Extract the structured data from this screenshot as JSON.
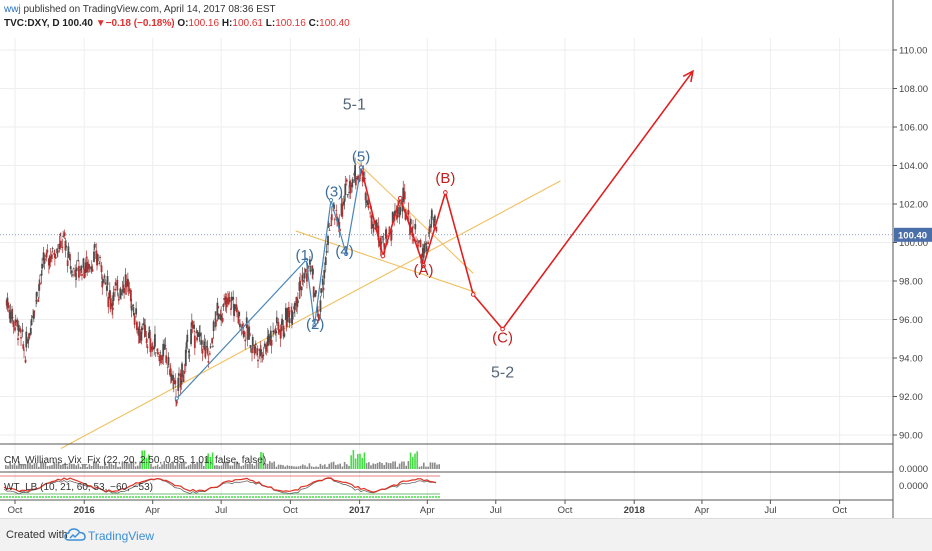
{
  "header": {
    "user": "wwj",
    "published": " published on TradingView.com, April 14, 2017 08:36 EST",
    "symbol": "TVC:DXY, D",
    "last": "100.40",
    "change": "−0.18 (−0.18%)",
    "o_label": "O:",
    "o_value": "100.16",
    "h_label": "H:",
    "h_value": "100.61",
    "l_label": "L:",
    "l_value": "100.16",
    "c_label": "C:",
    "c_value": "100.40"
  },
  "colors": {
    "up": "#4a4a4a",
    "down": "#b03030",
    "wave_blue": "#4a86b8",
    "wave_red": "#e02020",
    "trend_yellow": "#f0c060",
    "price_tag": "#4a6ea8",
    "green": "#44dd44"
  },
  "chart_data": {
    "type": "candlestick",
    "symbol": "TVC:DXY",
    "interval": "D",
    "y_ticks": [
      "110.00",
      "108.00",
      "106.00",
      "104.00",
      "102.00",
      "100.00",
      "98.00",
      "96.00",
      "94.00",
      "92.00",
      "90.00"
    ],
    "ylim": [
      89,
      111
    ],
    "last_price": "100.40",
    "x_ticks": [
      "Oct",
      "2016",
      "Apr",
      "Jul",
      "Oct",
      "2017",
      "Apr",
      "Jul",
      "Oct",
      "2018",
      "Apr",
      "Jul",
      "Oct"
    ],
    "price_path": [
      [
        "2015-09-20",
        97.0
      ],
      [
        "2015-10-05",
        95.5
      ],
      [
        "2015-10-15",
        94.2
      ],
      [
        "2015-10-25",
        96.5
      ],
      [
        "2015-11-10",
        99.0
      ],
      [
        "2015-11-25",
        99.8
      ],
      [
        "2015-12-05",
        100.2
      ],
      [
        "2015-12-15",
        98.5
      ],
      [
        "2016-01-01",
        98.8
      ],
      [
        "2016-01-20",
        99.2
      ],
      [
        "2016-02-05",
        97.0
      ],
      [
        "2016-02-25",
        98.0
      ],
      [
        "2016-03-15",
        95.5
      ],
      [
        "2016-04-05",
        94.5
      ],
      [
        "2016-04-20",
        94.0
      ],
      [
        "2016-05-03",
        92.0
      ],
      [
        "2016-05-25",
        95.5
      ],
      [
        "2016-06-15",
        94.0
      ],
      [
        "2016-06-25",
        96.2
      ],
      [
        "2016-07-15",
        97.0
      ],
      [
        "2016-08-01",
        95.5
      ],
      [
        "2016-08-20",
        94.2
      ],
      [
        "2016-09-10",
        95.5
      ],
      [
        "2016-09-25",
        95.8
      ],
      [
        "2016-10-15",
        97.8
      ],
      [
        "2016-10-28",
        98.8
      ],
      [
        "2016-11-08",
        96.0
      ],
      [
        "2016-11-25",
        101.5
      ],
      [
        "2016-12-05",
        101.0
      ],
      [
        "2016-12-20",
        103.3
      ],
      [
        "2017-01-03",
        103.7
      ],
      [
        "2017-01-20",
        101.0
      ],
      [
        "2017-02-05",
        100.0
      ],
      [
        "2017-02-20",
        101.5
      ],
      [
        "2017-03-01",
        102.0
      ],
      [
        "2017-03-15",
        100.5
      ],
      [
        "2017-03-27",
        99.2
      ],
      [
        "2017-04-07",
        101.0
      ],
      [
        "2017-04-14",
        100.4
      ]
    ],
    "waves": {
      "impulse_labels": [
        {
          "label": "(1)",
          "date": "2016-10-20",
          "price": 99.1
        },
        {
          "label": "(2)",
          "date": "2016-11-03",
          "price": 95.5
        },
        {
          "label": "(3)",
          "date": "2016-11-28",
          "price": 102.4
        },
        {
          "label": "(4)",
          "date": "2016-12-12",
          "price": 99.3
        },
        {
          "label": "(5)",
          "date": "2017-01-03",
          "price": 104.2
        }
      ],
      "corrective_labels": [
        {
          "label": "(A)",
          "date": "2017-03-27",
          "price": 98.3
        },
        {
          "label": "(B)",
          "date": "2017-04-25",
          "price": 103.1
        },
        {
          "label": "(C)",
          "date": "2017-07-10",
          "price": 94.8
        }
      ],
      "degree_labels": [
        {
          "label": "5-1",
          "date": "2016-12-25",
          "price": 106.9
        },
        {
          "label": "5-2",
          "date": "2017-07-10",
          "price": 93.0
        }
      ],
      "red_path": [
        [
          "2017-01-03",
          103.9
        ],
        [
          "2017-02-01",
          99.3
        ],
        [
          "2017-02-24",
          102.3
        ],
        [
          "2017-03-27",
          98.8
        ],
        [
          "2017-04-25",
          102.6
        ],
        [
          "2017-06-01",
          97.3
        ],
        [
          "2017-07-10",
          95.5
        ],
        [
          "2018-03-20",
          108.9
        ]
      ],
      "blue_path": [
        [
          "2016-05-03",
          91.9
        ],
        [
          "2016-10-22",
          99.1
        ],
        [
          "2016-11-02",
          95.7
        ],
        [
          "2016-11-24",
          102.2
        ],
        [
          "2016-12-14",
          99.4
        ],
        [
          "2017-01-03",
          103.9
        ]
      ]
    },
    "indicators": [
      {
        "name": "CM_Williams_Vix_Fix (22, 20, 2.50, 0.85, 1.01, false, false)",
        "value": "0.0000"
      },
      {
        "name": "WT_LB (10, 21, 60, 53, −60, −53)",
        "value": "0.0000"
      }
    ]
  },
  "footer": {
    "created_with": "Created with",
    "brand": "TradingView"
  }
}
